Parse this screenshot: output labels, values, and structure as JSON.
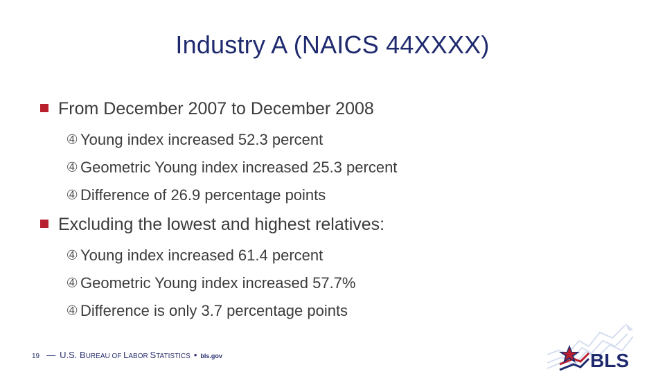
{
  "slide": {
    "title": "Industry A (NAICS 44XXXX)",
    "bullets": [
      {
        "text": "From December 2007 to December 2008",
        "subitems": [
          "Young index increased 52.3 percent",
          "Geometric Young index increased 25.3 percent",
          "Difference of 26.9 percentage points"
        ]
      },
      {
        "text": "Excluding the lowest and highest relatives:",
        "subitems": [
          "Young index increased 61.4 percent",
          "Geometric Young index increased 57.7%",
          "Difference is only 3.7 percentage points"
        ]
      }
    ],
    "sub_marker": "➃"
  },
  "footer": {
    "page_number": "19",
    "dash": "—",
    "agency_parts": [
      "U.S. B",
      "UREAU OF ",
      "L",
      "ABOR ",
      "S",
      "TATISTICS"
    ],
    "separator": "•",
    "url": "bls.gov"
  },
  "logo": {
    "text": "BLS",
    "colors": {
      "navy": "#1f2a6e",
      "red": "#b8202e",
      "wave": "#d6def0"
    }
  },
  "colors": {
    "title": "#1f2a6e",
    "bullet_square": "#b8202e",
    "body_text": "#3b3b3b"
  }
}
